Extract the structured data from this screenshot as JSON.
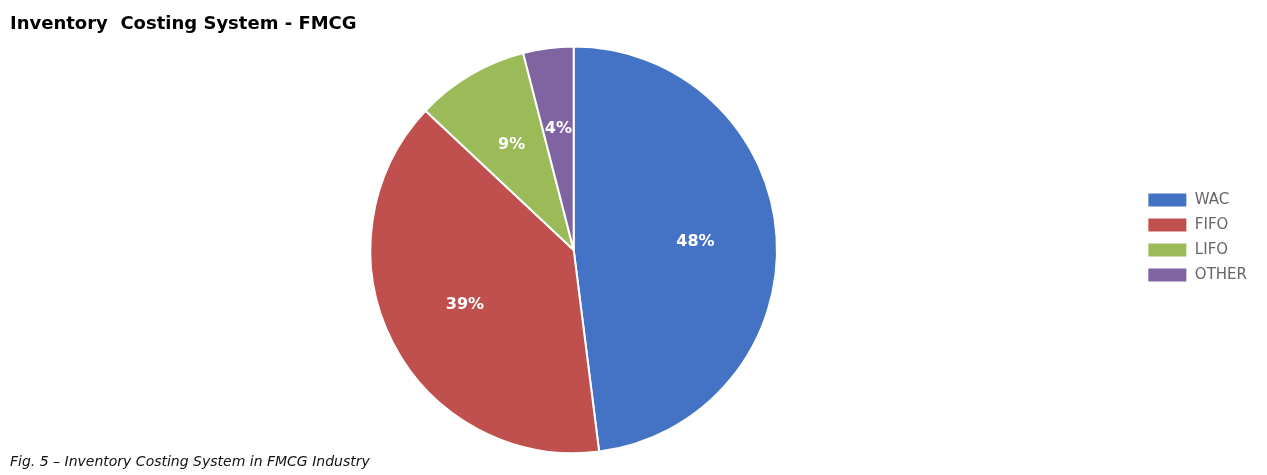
{
  "chart_data": {
    "type": "pie",
    "title": "Inventory  Costing System - FMCG",
    "caption": "Fig. 5 – Inventory Costing System in FMCG Industry",
    "categories": [
      "WAC",
      "FIFO",
      "LIFO",
      "OTHER"
    ],
    "values": [
      48,
      39,
      9,
      4
    ],
    "value_labels": [
      "48%",
      "39%",
      "9%",
      "4%"
    ],
    "colors": [
      "#4472C4",
      "#C0504D",
      "#9BBB59",
      "#8064A2"
    ],
    "data_labels": true,
    "legend": "right"
  }
}
